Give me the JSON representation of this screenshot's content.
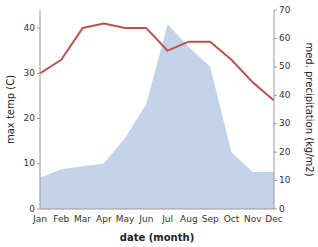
{
  "chart_data": {
    "type": "line",
    "x_label": "date (month)",
    "y_label": "max temp (C)",
    "y2_label": "med. precipitation (kg/m2)",
    "categories": [
      "Jan",
      "Feb",
      "Mar",
      "Apr",
      "May",
      "Jun",
      "Jul",
      "Aug",
      "Sep",
      "Oct",
      "Nov",
      "Dec"
    ],
    "series": [
      {
        "type": "area",
        "axis": "y2",
        "color": "#c5d3ea",
        "values": [
          11,
          14,
          15,
          16,
          25,
          37,
          65,
          57,
          50,
          20,
          13,
          13
        ]
      },
      {
        "type": "line",
        "color": "#c0514e",
        "values": [
          30,
          33,
          40,
          41,
          40,
          40,
          35,
          37,
          37,
          33,
          28,
          24
        ]
      }
    ],
    "ylim": [
      0,
      44
    ],
    "yticks": [
      0,
      10,
      20,
      30,
      40
    ],
    "y2lim": [
      0,
      70
    ],
    "y2ticks": [
      0,
      10,
      20,
      30,
      40,
      50,
      60,
      70
    ],
    "grid": false
  }
}
